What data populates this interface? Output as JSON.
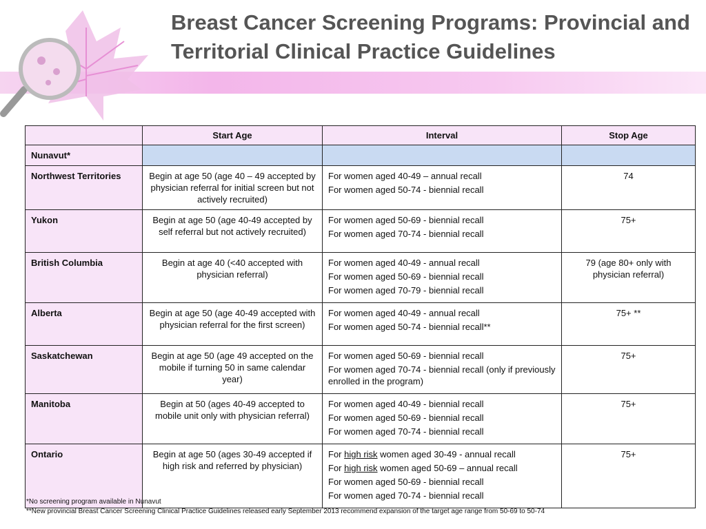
{
  "title": "Breast Cancer Screening Programs: Provincial and Territorial Clinical Practice Guidelines",
  "table": {
    "header": [
      "Start Age",
      "Interval",
      "Stop Age"
    ],
    "rows": [
      {
        "province": "Nunavut*"
      },
      {
        "province": "Northwest Territories",
        "start_age": "Begin at age 50 (age 40 – 49 accepted by physician referral for initial screen but not actively recruited)",
        "interval": [
          "For women aged 40-49 – annual recall",
          "For women aged 50-74 -  biennial recall"
        ],
        "stop_age": "74"
      },
      {
        "province": "Yukon",
        "start_age": "Begin at age 50 (age 40-49 accepted by self referral but not actively recruited)",
        "interval": [
          "For women aged 50-69 - biennial recall",
          "For women aged 70-74 - biennial recall"
        ],
        "stop_age": "75+"
      },
      {
        "province": "British Columbia",
        "start_age": "Begin at age 40 (<40 accepted with physician referral)",
        "interval": [
          "For women aged 40-49  -  annual recall",
          "For women aged 50-69  - biennial recall",
          "For women aged 70-79 - biennial recall"
        ],
        "stop_age": "79 (age 80+ only with physician referral)"
      },
      {
        "province": "Alberta",
        "start_age": "Begin at age 50 (age 40-49 accepted with physician referral for the first screen)",
        "interval": [
          "For women aged 40-49  -  annual recall",
          "For women aged 50-74 -  biennial recall**"
        ],
        "stop_age": "75+ **"
      },
      {
        "province": "Saskatchewan",
        "start_age": "Begin at age 50 (age 49 accepted on the mobile if turning 50 in same calendar year)",
        "interval": [
          "For women aged 50-69 -  biennial recall",
          "For women aged 70-74 - biennial recall (only if previously enrolled in the program)"
        ],
        "stop_age": "75+"
      },
      {
        "province": "Manitoba",
        "start_age": "Begin at 50 (ages 40-49 accepted to mobile unit only with physician referral)",
        "interval": [
          "For women aged 40-49  -  biennial recall",
          "For women aged 50-69 -  biennial recall",
          "For women aged 70-74 - biennial recall"
        ],
        "stop_age": "75+"
      },
      {
        "province": "Ontario",
        "start_age": "Begin at age 50 (ages 30-49 accepted if high risk and referred by physician)",
        "interval": [
          [
            "For ",
            "high risk",
            " women aged 30-49  -  annual recall"
          ],
          [
            "For ",
            "high risk",
            " women aged 50-69 – annual recall"
          ],
          "For women aged 50-69 -  biennial recall",
          "For women aged 70-74 - biennial recall"
        ],
        "stop_age": "75+"
      }
    ]
  },
  "footnotes": [
    "*No screening program available in Nunavut",
    "**New provincial Breast Cancer Screening Clinical Practice Guidelines released early September 2013 recommend expansion of the target age range from 50-69 to 50-74"
  ]
}
